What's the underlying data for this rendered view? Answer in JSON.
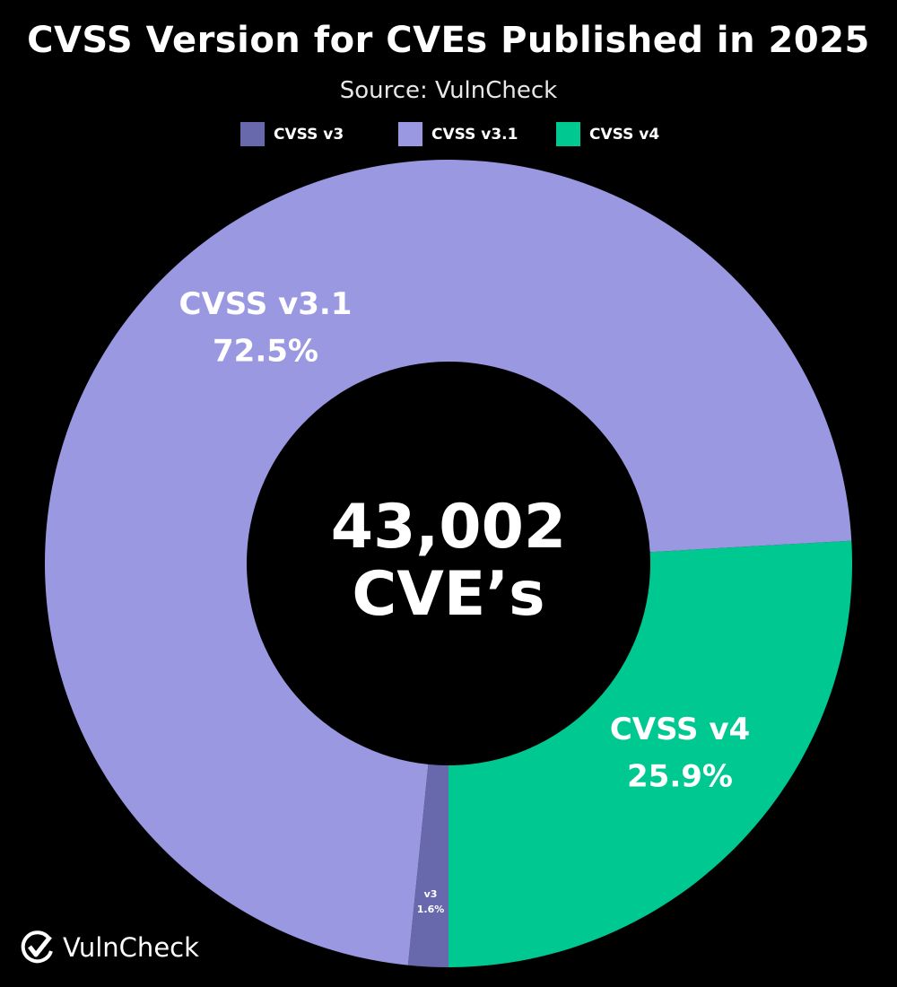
{
  "chart_data": {
    "type": "pie",
    "variant": "donut",
    "title": "CVSS Version for CVEs Published in 2025",
    "subtitle": "Source: VulnCheck",
    "legend_position": "top",
    "legend": [
      "CVSS v3",
      "CVSS v3.1",
      "CVSS v4"
    ],
    "slices": [
      {
        "name": "CVSS v4",
        "label": "CVSS v4",
        "value": 25.9,
        "value_label": "25.9%",
        "color": "#00c891"
      },
      {
        "name": "CVSS v3",
        "label": "v3",
        "value": 1.6,
        "value_label": "1.6%",
        "color": "#6868ac"
      },
      {
        "name": "CVSS v3.1",
        "label": "CVSS v3.1",
        "value": 72.5,
        "value_label": "72.5%",
        "color": "#9b98e2"
      }
    ],
    "center_text": [
      "43,002",
      "CVE’s"
    ]
  },
  "logo": {
    "text": "VulnCheck"
  }
}
